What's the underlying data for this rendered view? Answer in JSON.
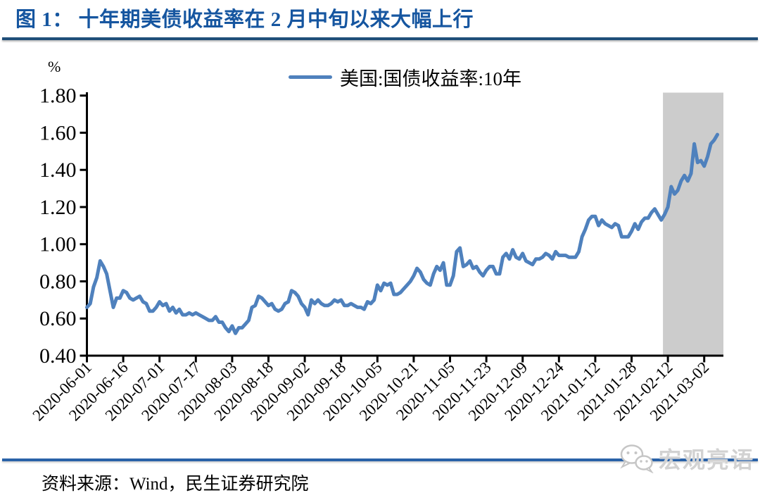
{
  "header": {
    "title": "图 1： 十年期美债收益率在 2 月中旬以来大幅上行"
  },
  "footer": {
    "source": "资料来源：Wind，民生证券研究院",
    "watermark_text": "宏观亮语",
    "watermark_icon": "wechat-chat-bubbles-icon",
    "watermark_color": "#c6c6c6"
  },
  "colors": {
    "title_blue": "#1656A0",
    "title_rule_navy": "#1F4E79",
    "footer_rule_blue": "#2A62A8",
    "series_blue": "#4F81BD",
    "highlight_gray": "#CCCCCC",
    "axis_black": "#000000"
  },
  "chart_data": {
    "type": "line",
    "title": "图 1： 十年期美债收益率在 2 月中旬以来大幅上行",
    "unit_label": "%",
    "xlabel": "",
    "ylabel": "%",
    "ylim": [
      0.4,
      1.8
    ],
    "y_ticks": [
      "1.80",
      "1.60",
      "1.40",
      "1.20",
      "1.00",
      "0.80",
      "0.60",
      "0.40"
    ],
    "grid": false,
    "legend_position": "top-center",
    "x_start_date": "2020-06-01",
    "x_end_date": "2021-03-08",
    "x_frequency": "US business days (one point per trading day)",
    "x_tick_every_n_points": 11,
    "x_tick_labels": [
      "2020-06-01",
      "2020-06-16",
      "2020-07-01",
      "2020-07-17",
      "2020-08-03",
      "2020-08-18",
      "2020-09-02",
      "2020-09-18",
      "2020-10-05",
      "2020-10-21",
      "2020-11-05",
      "2020-11-23",
      "2020-12-09",
      "2020-12-24",
      "2021-01-12",
      "2021-01-28",
      "2021-02-12",
      "2021-03-02"
    ],
    "highlight_band": {
      "start_point_index": 174.5,
      "start_near_label": "2021-02-12",
      "extends_to": "right edge of plot",
      "color": "#CCCCCC"
    },
    "series": [
      {
        "name": "美国:国债收益率:10年",
        "color": "#4F81BD",
        "values": [
          0.66,
          0.68,
          0.77,
          0.82,
          0.91,
          0.88,
          0.84,
          0.75,
          0.66,
          0.71,
          0.71,
          0.75,
          0.74,
          0.71,
          0.7,
          0.71,
          0.72,
          0.69,
          0.68,
          0.64,
          0.64,
          0.66,
          0.69,
          0.67,
          0.68,
          0.64,
          0.66,
          0.63,
          0.65,
          0.62,
          0.62,
          0.63,
          0.62,
          0.63,
          0.62,
          0.61,
          0.6,
          0.59,
          0.59,
          0.61,
          0.58,
          0.58,
          0.55,
          0.53,
          0.56,
          0.52,
          0.55,
          0.55,
          0.57,
          0.59,
          0.66,
          0.67,
          0.72,
          0.71,
          0.69,
          0.67,
          0.68,
          0.65,
          0.64,
          0.65,
          0.68,
          0.69,
          0.75,
          0.74,
          0.72,
          0.68,
          0.66,
          0.62,
          0.7,
          0.68,
          0.7,
          0.68,
          0.67,
          0.67,
          0.68,
          0.7,
          0.69,
          0.7,
          0.67,
          0.67,
          0.68,
          0.67,
          0.66,
          0.66,
          0.65,
          0.69,
          0.68,
          0.7,
          0.78,
          0.75,
          0.79,
          0.78,
          0.79,
          0.73,
          0.73,
          0.74,
          0.76,
          0.78,
          0.8,
          0.83,
          0.87,
          0.85,
          0.81,
          0.79,
          0.78,
          0.84,
          0.88,
          0.86,
          0.9,
          0.78,
          0.78,
          0.83,
          0.96,
          0.98,
          0.88,
          0.89,
          0.91,
          0.87,
          0.88,
          0.85,
          0.83,
          0.86,
          0.88,
          0.88,
          0.84,
          0.84,
          0.93,
          0.95,
          0.92,
          0.97,
          0.93,
          0.92,
          0.95,
          0.91,
          0.9,
          0.89,
          0.92,
          0.92,
          0.93,
          0.95,
          0.94,
          0.92,
          0.96,
          0.94,
          0.94,
          0.94,
          0.93,
          0.93,
          0.93,
          0.96,
          1.04,
          1.08,
          1.13,
          1.15,
          1.15,
          1.1,
          1.13,
          1.11,
          1.1,
          1.09,
          1.11,
          1.1,
          1.04,
          1.04,
          1.04,
          1.07,
          1.11,
          1.08,
          1.12,
          1.14,
          1.14,
          1.17,
          1.19,
          1.16,
          1.13,
          1.16,
          1.2,
          1.31,
          1.27,
          1.29,
          1.34,
          1.37,
          1.34,
          1.38,
          1.54,
          1.44,
          1.45,
          1.42,
          1.47,
          1.54,
          1.56,
          1.59
        ]
      }
    ]
  }
}
